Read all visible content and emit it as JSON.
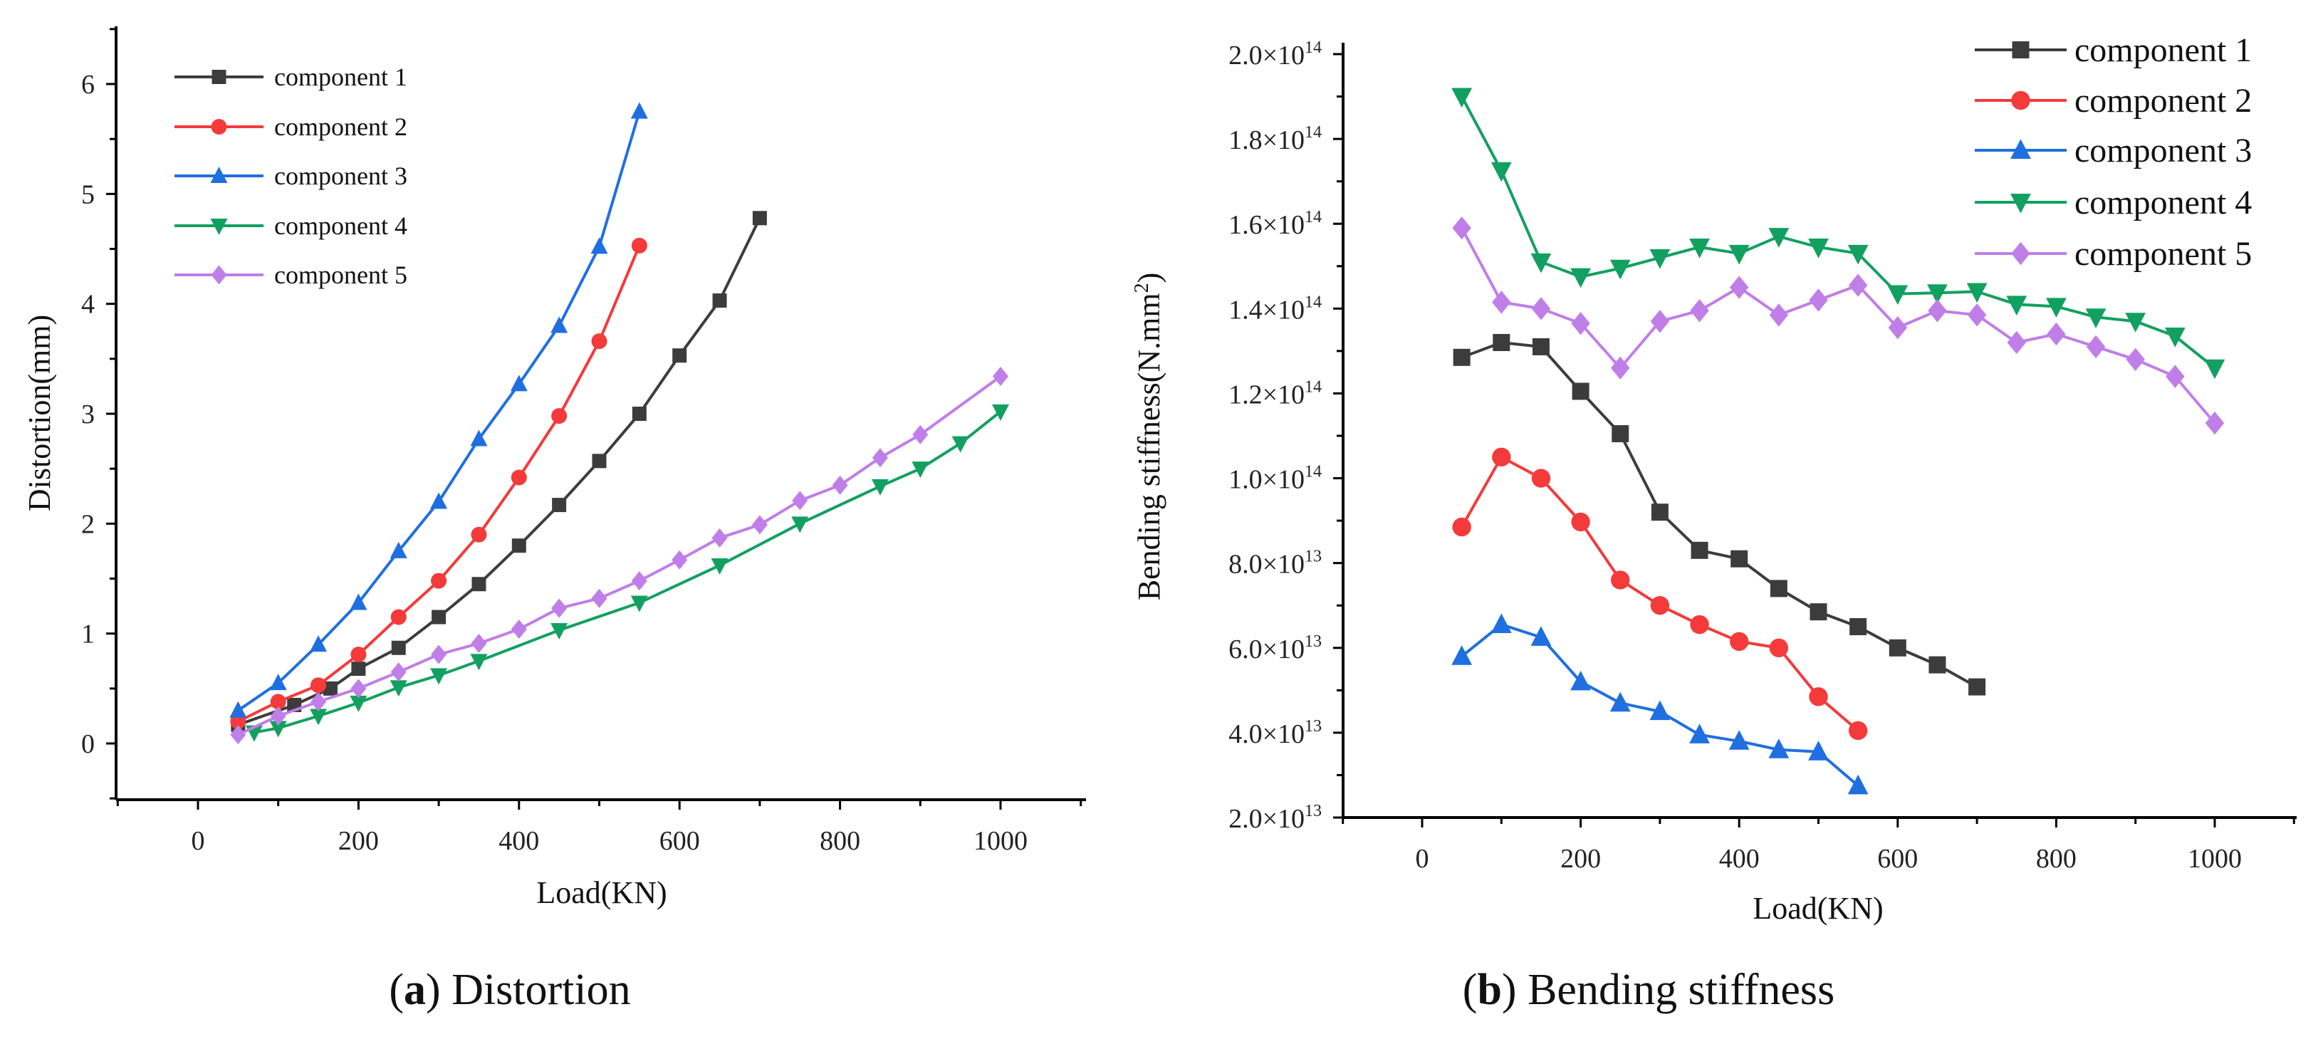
{
  "colors": {
    "component 1": "#3c3c3c",
    "component 2": "#f43a3a",
    "component 3": "#1f6fe0",
    "component 4": "#12a060",
    "component 5": "#c07ee8"
  },
  "markers": {
    "component 1": "square",
    "component 2": "circle",
    "component 3": "triangle-up",
    "component 4": "triangle-down",
    "component 5": "diamond"
  },
  "chart_data": [
    {
      "type": "line",
      "caption_label": "a",
      "caption_text": "Distortion",
      "xlabel": "Load(KN)",
      "ylabel": "Distortion(mm)",
      "xlim": [
        -100,
        1100
      ],
      "ylim": [
        -0.5,
        6.5
      ],
      "xticks": [
        0,
        200,
        400,
        600,
        800,
        1000
      ],
      "yticks": [
        0,
        1,
        2,
        3,
        4,
        5,
        6
      ],
      "legend": "top-left",
      "series": [
        {
          "name": "component 1",
          "x": [
            50,
            120,
            165,
            200,
            250,
            300,
            350,
            400,
            450,
            500,
            550,
            600,
            650,
            700
          ],
          "y": [
            0.17,
            0.35,
            0.5,
            0.68,
            0.87,
            1.15,
            1.45,
            1.8,
            2.17,
            2.57,
            3.0,
            3.53,
            4.03,
            4.78
          ]
        },
        {
          "name": "component 2",
          "x": [
            50,
            100,
            150,
            200,
            250,
            300,
            350,
            400,
            450,
            500,
            550
          ],
          "y": [
            0.2,
            0.38,
            0.53,
            0.81,
            1.15,
            1.48,
            1.9,
            2.42,
            2.98,
            3.66,
            4.53
          ]
        },
        {
          "name": "component 3",
          "x": [
            50,
            100,
            150,
            200,
            250,
            300,
            350,
            400,
            450,
            500,
            550
          ],
          "y": [
            0.3,
            0.55,
            0.9,
            1.28,
            1.75,
            2.2,
            2.77,
            3.27,
            3.8,
            4.52,
            5.75
          ]
        },
        {
          "name": "component 4",
          "x": [
            70,
            100,
            150,
            200,
            250,
            300,
            350,
            450,
            550,
            650,
            750,
            850,
            900,
            950,
            1000
          ],
          "y": [
            0.1,
            0.14,
            0.25,
            0.37,
            0.51,
            0.62,
            0.75,
            1.03,
            1.28,
            1.62,
            2.0,
            2.34,
            2.5,
            2.73,
            3.02
          ]
        },
        {
          "name": "component 5",
          "x": [
            50,
            100,
            150,
            200,
            250,
            300,
            350,
            400,
            450,
            500,
            550,
            600,
            650,
            700,
            750,
            800,
            850,
            900,
            1000
          ],
          "y": [
            0.08,
            0.25,
            0.38,
            0.5,
            0.65,
            0.81,
            0.91,
            1.04,
            1.23,
            1.32,
            1.48,
            1.67,
            1.87,
            1.99,
            2.21,
            2.35,
            2.6,
            2.81,
            3.34
          ]
        }
      ]
    },
    {
      "type": "line",
      "caption_label": "b",
      "caption_text": "Bending stiffness",
      "xlabel": "Load(KN)",
      "ylabel": "Bending stiffness(N.mm",
      "ylabel_sup": "2",
      "ylabel_end": ")",
      "xlim": [
        -100,
        1100
      ],
      "ylim": [
        20000000000000.0,
        200000000000000.0
      ],
      "xticks": [
        0,
        200,
        400,
        600,
        800,
        1000
      ],
      "yticks": [
        {
          "m": "2.0",
          "e": "13",
          "v": 20000000000000.0
        },
        {
          "m": "4.0",
          "e": "13",
          "v": 40000000000000.0
        },
        {
          "m": "6.0",
          "e": "13",
          "v": 60000000000000.0
        },
        {
          "m": "8.0",
          "e": "13",
          "v": 80000000000000.0
        },
        {
          "m": "1.0",
          "e": "14",
          "v": 100000000000000.0
        },
        {
          "m": "1.2",
          "e": "14",
          "v": 120000000000000.0
        },
        {
          "m": "1.4",
          "e": "14",
          "v": 140000000000000.0
        },
        {
          "m": "1.6",
          "e": "14",
          "v": 160000000000000.0
        },
        {
          "m": "1.8",
          "e": "14",
          "v": 180000000000000.0
        },
        {
          "m": "2.0",
          "e": "14",
          "v": 200000000000000.0
        }
      ],
      "legend": "top-right",
      "series": [
        {
          "name": "component 1",
          "x": [
            50,
            100,
            150,
            200,
            250,
            300,
            350,
            400,
            450,
            500,
            550,
            600,
            650,
            700
          ],
          "y": [
            128500000000000.0,
            132000000000000.0,
            131000000000000.0,
            120500000000000.0,
            110500000000000.0,
            92000000000000.0,
            83000000000000.0,
            81000000000000.0,
            74000000000000.0,
            68500000000000.0,
            65000000000000.0,
            60000000000000.0,
            56000000000000.0,
            50800000000000.0
          ]
        },
        {
          "name": "component 2",
          "x": [
            50,
            100,
            150,
            200,
            250,
            300,
            350,
            400,
            450,
            500,
            550
          ],
          "y": [
            88500000000000.0,
            105000000000000.0,
            100000000000000.0,
            89700000000000.0,
            76000000000000.0,
            70000000000000.0,
            65500000000000.0,
            61500000000000.0,
            60000000000000.0,
            48500000000000.0,
            40500000000000.0
          ]
        },
        {
          "name": "component 3",
          "x": [
            50,
            100,
            150,
            200,
            250,
            300,
            350,
            400,
            450,
            500,
            550
          ],
          "y": [
            58000000000000.0,
            65500000000000.0,
            62500000000000.0,
            52000000000000.0,
            47000000000000.0,
            45000000000000.0,
            39500000000000.0,
            38000000000000.0,
            36000000000000.0,
            35500000000000.0,
            27500000000000.0
          ]
        },
        {
          "name": "component 4",
          "x": [
            50,
            100,
            150,
            200,
            250,
            300,
            350,
            400,
            450,
            500,
            550,
            600,
            650,
            700,
            750,
            800,
            850,
            900,
            950,
            1000
          ],
          "y": [
            190000000000000.0,
            172500000000000.0,
            151000000000000.0,
            147500000000000.0,
            149500000000000.0,
            152000000000000.0,
            154500000000000.0,
            153000000000000.0,
            157000000000000.0,
            154500000000000.0,
            153000000000000.0,
            143500000000000.0,
            143700000000000.0,
            144000000000000.0,
            141000000000000.0,
            140500000000000.0,
            138000000000000.0,
            137000000000000.0,
            133500000000000.0,
            126000000000000.0
          ]
        },
        {
          "name": "component 5",
          "x": [
            50,
            100,
            150,
            200,
            250,
            300,
            350,
            400,
            450,
            500,
            550,
            600,
            650,
            700,
            750,
            800,
            850,
            900,
            950,
            1000
          ],
          "y": [
            159000000000000.0,
            141500000000000.0,
            140000000000000.0,
            136500000000000.0,
            126000000000000.0,
            137000000000000.0,
            139500000000000.0,
            145000000000000.0,
            138500000000000.0,
            142000000000000.0,
            145500000000000.0,
            135500000000000.0,
            139500000000000.0,
            138500000000000.0,
            132000000000000.0,
            134000000000000.0,
            131000000000000.0,
            128000000000000.0,
            124000000000000.0,
            113000000000000.0
          ]
        }
      ]
    }
  ]
}
